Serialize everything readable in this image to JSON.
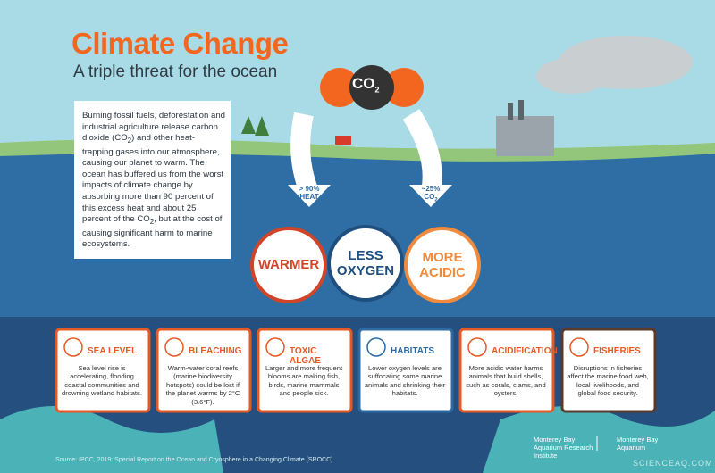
{
  "header": {
    "title": "Climate Change",
    "subtitle": "A triple threat for the ocean"
  },
  "molecule": {
    "label": "CO",
    "subscript": "2"
  },
  "intro": {
    "parts": [
      "Burning fossil fuels, deforestation and industrial agriculture release carbon dioxide (CO",
      "2",
      ") and other heat-trapping gases into our atmosphere, causing our planet to warm. The ocean has buffered us from the worst impacts of climate change by absorbing more than 90 percent of this excess heat and about 25 percent of the CO",
      "2",
      ", but at the cost of causing significant harm to marine ecosystems."
    ]
  },
  "arrows": [
    {
      "amount": "> 90%",
      "label": "HEAT"
    },
    {
      "amount": "~25%",
      "label": "CO",
      "subscript": "2"
    }
  ],
  "threats": [
    {
      "label": "WARMER"
    },
    {
      "label": "LESS OXYGEN"
    },
    {
      "label": "MORE ACIDIC"
    }
  ],
  "cards": [
    {
      "title": "SEA LEVEL",
      "body": "Sea level rise is accelerating, flooding coastal communities and drowning wetland habitats."
    },
    {
      "title": "BLEACHING",
      "body": "Warm-water coral reefs (marine biodiversity hotspots) could be lost if the planet warms by 2°C (3.6°F)."
    },
    {
      "title": "TOXIC ALGAE",
      "body": "Larger and more frequent blooms are making fish, birds, marine mammals and people sick."
    },
    {
      "title": "HABITATS",
      "body": "Lower oxygen levels are suffocating some marine animals and shrinking their habitats."
    },
    {
      "title": "ACIDIFICATION",
      "body": "More acidic water harms animals that build shells, such as corals, clams, and oysters."
    },
    {
      "title": "FISHERIES",
      "body": "Disruptions in fisheries affect the marine food web, local livelihoods, and global food security."
    }
  ],
  "footer": {
    "source": "Source: IPCC, 2019: Special Report on the Ocean and Cryosphere in a Changing Climate (SROCC)",
    "logo1": "Monterey Bay Aquarium Research Institute",
    "logo2": "Monterey Bay Aquarium",
    "watermark": "SCIENCEAQ.COM"
  }
}
